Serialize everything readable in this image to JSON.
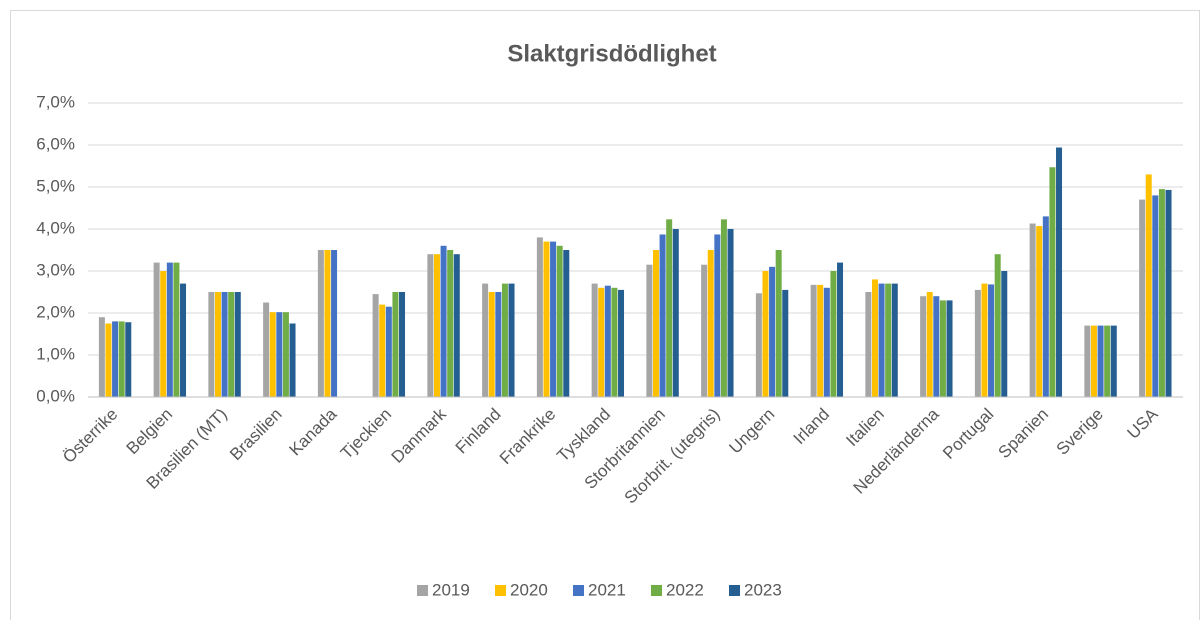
{
  "chart_data": {
    "type": "bar",
    "title": "Slaktgrisdödlighet",
    "categories": [
      "Österrike",
      "Belgien",
      "Brasilien (MT)",
      "Brasilien",
      "Kanada",
      "Tjeckien",
      "Danmark",
      "Finland",
      "Frankrike",
      "Tyskland",
      "Storbritannien",
      "Storbrit. (utegris)",
      "Ungern",
      "Irland",
      "Italien",
      "Nederländerna",
      "Portugal",
      "Spanien",
      "Sverige",
      "USA"
    ],
    "series": [
      {
        "name": "2019",
        "color": "#a5a5a5",
        "values": [
          1.9,
          3.2,
          2.5,
          2.25,
          3.5,
          2.45,
          3.4,
          2.7,
          3.8,
          2.7,
          3.15,
          3.15,
          2.47,
          2.67,
          2.5,
          2.4,
          2.55,
          4.13,
          1.7,
          4.7
        ]
      },
      {
        "name": "2020",
        "color": "#ffc000",
        "values": [
          1.75,
          3.0,
          2.5,
          2.02,
          3.5,
          2.2,
          3.4,
          2.5,
          3.7,
          2.6,
          3.5,
          3.5,
          3.0,
          2.67,
          2.8,
          2.5,
          2.7,
          4.07,
          1.7,
          5.3
        ]
      },
      {
        "name": "2021",
        "color": "#4472c4",
        "values": [
          1.8,
          3.2,
          2.5,
          2.02,
          3.5,
          2.15,
          3.6,
          2.5,
          3.7,
          2.65,
          3.87,
          3.87,
          3.1,
          2.6,
          2.7,
          2.4,
          2.68,
          4.3,
          1.7,
          4.8
        ]
      },
      {
        "name": "2022",
        "color": "#70ad47",
        "values": [
          1.8,
          3.2,
          2.5,
          2.02,
          null,
          2.5,
          3.5,
          2.7,
          3.6,
          2.6,
          4.23,
          4.23,
          3.5,
          3.0,
          2.7,
          2.3,
          3.4,
          5.47,
          1.7,
          4.95
        ]
      },
      {
        "name": "2023",
        "color": "#255e91",
        "values": [
          1.78,
          2.7,
          2.5,
          1.75,
          null,
          2.5,
          3.4,
          2.7,
          3.5,
          2.55,
          4.0,
          4.0,
          2.55,
          3.2,
          2.7,
          2.3,
          3.0,
          5.94,
          1.7,
          4.93
        ]
      }
    ],
    "ylim": [
      0,
      7
    ],
    "yticks": [
      {
        "value": 0,
        "label": "0,0%"
      },
      {
        "value": 1,
        "label": "1,0%"
      },
      {
        "value": 2,
        "label": "2,0%"
      },
      {
        "value": 3,
        "label": "3,0%"
      },
      {
        "value": 4,
        "label": "4,0%"
      },
      {
        "value": 5,
        "label": "5,0%"
      },
      {
        "value": 6,
        "label": "6,0%"
      },
      {
        "value": 7,
        "label": "7,0%"
      }
    ],
    "grid": true
  }
}
